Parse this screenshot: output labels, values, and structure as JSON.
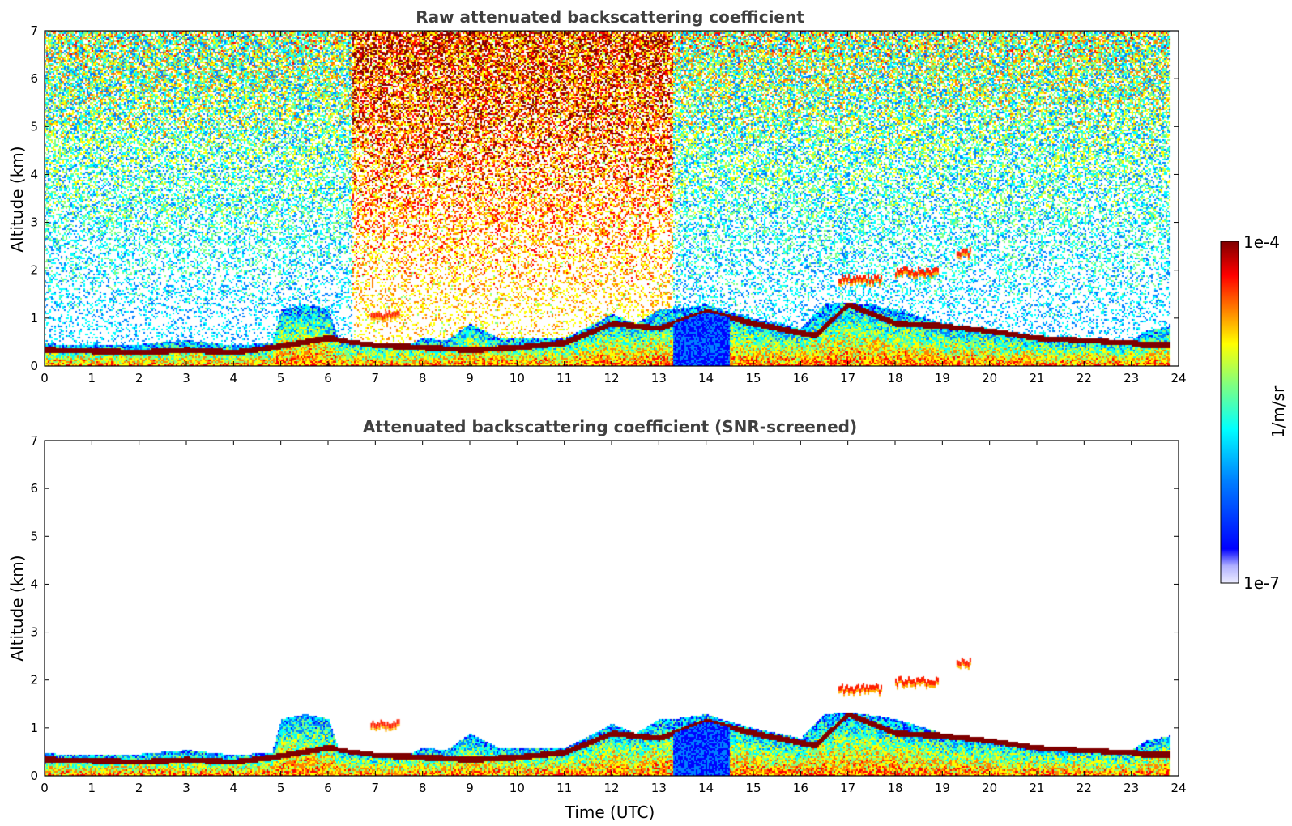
{
  "chart_data": [
    {
      "type": "heatmap",
      "title": "Raw attenuated backscattering coefficient",
      "xlabel": "",
      "ylabel": "Altitude (km)",
      "xlim": [
        0,
        24
      ],
      "ylim": [
        0,
        7
      ],
      "xticks": [
        "0",
        "1",
        "2",
        "3",
        "4",
        "5",
        "6",
        "7",
        "8",
        "9",
        "10",
        "11",
        "12",
        "13",
        "14",
        "15",
        "16",
        "17",
        "18",
        "19",
        "20",
        "21",
        "22",
        "23",
        "24"
      ],
      "yticks": [
        "0",
        "1",
        "2",
        "3",
        "4",
        "5",
        "6",
        "7"
      ],
      "boundary_layer_top_km": [
        [
          0,
          0.48
        ],
        [
          1,
          0.45
        ],
        [
          2,
          0.47
        ],
        [
          3,
          0.55
        ],
        [
          4,
          0.45
        ],
        [
          4.8,
          0.5
        ],
        [
          5,
          1.2
        ],
        [
          5.5,
          1.3
        ],
        [
          6,
          1.2
        ],
        [
          6.2,
          0.6
        ],
        [
          7,
          0.5
        ],
        [
          7.8,
          0.5
        ],
        [
          8,
          0.6
        ],
        [
          8.5,
          0.55
        ],
        [
          9,
          0.9
        ],
        [
          9.6,
          0.6
        ],
        [
          10,
          0.6
        ],
        [
          11,
          0.6
        ],
        [
          11.6,
          0.9
        ],
        [
          12,
          1.1
        ],
        [
          12.5,
          0.9
        ],
        [
          13,
          1.2
        ],
        [
          13.3,
          1.2
        ],
        [
          14,
          1.3
        ],
        [
          14.3,
          1.2
        ],
        [
          15,
          1.0
        ],
        [
          16,
          0.8
        ],
        [
          16.5,
          1.3
        ],
        [
          17,
          1.35
        ],
        [
          18,
          1.2
        ],
        [
          19,
          0.9
        ],
        [
          20,
          0.8
        ],
        [
          21,
          0.65
        ],
        [
          22,
          0.6
        ],
        [
          23,
          0.55
        ],
        [
          23.3,
          0.75
        ],
        [
          23.8,
          0.85
        ]
      ],
      "aerosol_layer_top_km": [
        [
          0,
          0.35
        ],
        [
          1,
          0.33
        ],
        [
          2,
          0.3
        ],
        [
          3,
          0.35
        ],
        [
          4,
          0.3
        ],
        [
          4.8,
          0.4
        ],
        [
          6,
          0.6
        ],
        [
          7,
          0.45
        ],
        [
          8,
          0.4
        ],
        [
          9,
          0.35
        ],
        [
          10,
          0.4
        ],
        [
          11,
          0.5
        ],
        [
          12,
          0.9
        ],
        [
          13,
          0.8
        ],
        [
          14,
          1.15
        ],
        [
          15,
          0.9
        ],
        [
          16,
          0.7
        ],
        [
          16.3,
          0.65
        ],
        [
          17,
          1.3
        ],
        [
          18,
          0.9
        ],
        [
          19,
          0.85
        ],
        [
          20,
          0.75
        ],
        [
          21,
          0.6
        ],
        [
          22,
          0.55
        ],
        [
          23,
          0.5
        ],
        [
          23.3,
          0.45
        ]
      ],
      "elevated_layers_km": [
        {
          "x0": 16.8,
          "x1": 17.7,
          "y": 1.8
        },
        {
          "x0": 18.0,
          "x1": 18.9,
          "y": 1.95
        },
        {
          "x0": 19.3,
          "x1": 19.6,
          "y": 2.35
        },
        {
          "x0": 6.9,
          "x1": 7.5,
          "y": 1.05
        }
      ],
      "noise_regimes": [
        {
          "x0": 0,
          "x1": 6.5,
          "level": 0.55
        },
        {
          "x0": 6.5,
          "x1": 13.3,
          "level": 0.85
        },
        {
          "x0": 13.3,
          "x1": 23.8,
          "level": 0.55
        }
      ]
    },
    {
      "type": "heatmap",
      "title": "Attenuated backscattering coefficient (SNR-screened)",
      "xlabel": "Time (UTC)",
      "ylabel": "Altitude (km)",
      "xlim": [
        0,
        24
      ],
      "ylim": [
        0,
        7
      ],
      "xticks": [
        "0",
        "1",
        "2",
        "3",
        "4",
        "5",
        "6",
        "7",
        "8",
        "9",
        "10",
        "11",
        "12",
        "13",
        "14",
        "15",
        "16",
        "17",
        "18",
        "19",
        "20",
        "21",
        "22",
        "23",
        "24"
      ],
      "yticks": [
        "0",
        "1",
        "2",
        "3",
        "4",
        "5",
        "6",
        "7"
      ],
      "boundary_layer_top_km": [
        [
          0,
          0.48
        ],
        [
          1,
          0.45
        ],
        [
          2,
          0.47
        ],
        [
          3,
          0.55
        ],
        [
          4,
          0.45
        ],
        [
          4.8,
          0.5
        ],
        [
          5,
          1.2
        ],
        [
          5.5,
          1.3
        ],
        [
          6,
          1.2
        ],
        [
          6.2,
          0.6
        ],
        [
          7,
          0.5
        ],
        [
          7.8,
          0.5
        ],
        [
          8,
          0.6
        ],
        [
          8.5,
          0.55
        ],
        [
          9,
          0.9
        ],
        [
          9.6,
          0.6
        ],
        [
          10,
          0.6
        ],
        [
          11,
          0.6
        ],
        [
          11.6,
          0.9
        ],
        [
          12,
          1.1
        ],
        [
          12.5,
          0.9
        ],
        [
          13,
          1.2
        ],
        [
          13.3,
          1.2
        ],
        [
          14,
          1.3
        ],
        [
          14.3,
          1.2
        ],
        [
          15,
          1.0
        ],
        [
          16,
          0.8
        ],
        [
          16.5,
          1.3
        ],
        [
          17,
          1.35
        ],
        [
          18,
          1.2
        ],
        [
          19,
          0.9
        ],
        [
          20,
          0.8
        ],
        [
          21,
          0.65
        ],
        [
          22,
          0.6
        ],
        [
          23,
          0.55
        ],
        [
          23.3,
          0.75
        ],
        [
          23.8,
          0.85
        ]
      ],
      "screened_max_range_km": 7
    }
  ],
  "colorbar": {
    "min_label": "1e-7",
    "max_label": "1e-4",
    "unit_label": "1/m/sr",
    "colors": [
      "#ececff",
      "#b0b0ff",
      "#0000ff",
      "#0080ff",
      "#00ffff",
      "#80ff80",
      "#ffff00",
      "#ff8000",
      "#ff0000",
      "#800000"
    ]
  }
}
